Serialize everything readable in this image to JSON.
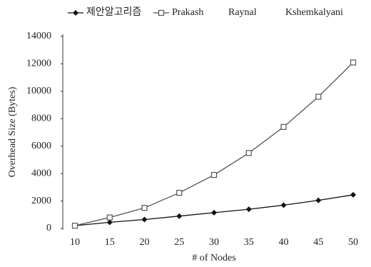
{
  "chart_data": {
    "type": "line",
    "x": [
      10,
      15,
      20,
      25,
      30,
      35,
      40,
      45,
      50
    ],
    "series": [
      {
        "name": "제안알고리즘",
        "color": "#111111",
        "marker": "diamond",
        "values": [
          200,
          450,
          650,
          900,
          1150,
          1400,
          1700,
          2050,
          2450
        ]
      },
      {
        "name": "Prakash",
        "color": "#555555",
        "marker": "square",
        "values": [
          200,
          800,
          1500,
          2600,
          3900,
          5500,
          7400,
          9600,
          12100
        ]
      },
      {
        "name": "Raynal",
        "values": [
          null,
          null,
          null,
          null,
          null,
          null,
          null,
          null,
          null
        ]
      },
      {
        "name": "Kshemkalyani",
        "values": [
          null,
          null,
          null,
          null,
          null,
          null,
          null,
          null,
          null
        ]
      }
    ],
    "xlim": [
      10,
      50
    ],
    "xticks": [
      10,
      15,
      20,
      25,
      30,
      35,
      40,
      45,
      50
    ],
    "ylim": [
      0,
      14000
    ],
    "yticks": [
      0,
      2000,
      4000,
      6000,
      8000,
      10000,
      12000,
      14000
    ],
    "xlabel": "# of Nodes",
    "ylabel": "Overhead Size (Bytes)"
  }
}
